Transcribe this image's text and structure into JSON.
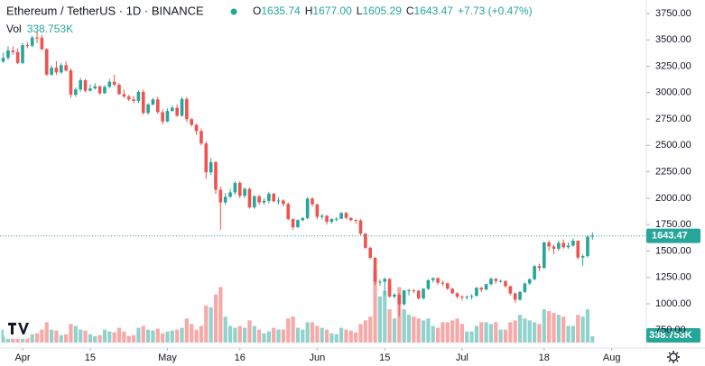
{
  "chart_data": {
    "type": "candlestick",
    "title": "Ethereum / TetherUS · 1D · BINANCE",
    "ohlc_legend": [
      {
        "key": "O",
        "label": "1635.74"
      },
      {
        "key": "H",
        "label": "1677.00"
      },
      {
        "key": "L",
        "label": "1605.29"
      },
      {
        "key": "C",
        "label": "1643.47"
      },
      {
        "label": "+7.73 (+0.47%)"
      }
    ],
    "volume_title": "Vol",
    "volume_label": "338.753K",
    "price_label": "1643.47",
    "up_color": "#26a69a",
    "down_color": "#ef5350",
    "x": [
      "03-28",
      "03-29",
      "03-30",
      "03-31",
      "04-01",
      "04-02",
      "04-03",
      "04-04",
      "04-05",
      "04-06",
      "04-07",
      "04-08",
      "04-09",
      "04-10",
      "04-11",
      "04-12",
      "04-13",
      "04-14",
      "04-15",
      "04-16",
      "04-17",
      "04-18",
      "04-19",
      "04-20",
      "04-21",
      "04-22",
      "04-23",
      "04-24",
      "04-25",
      "04-26",
      "04-27",
      "04-28",
      "04-29",
      "04-30",
      "05-01",
      "05-02",
      "05-03",
      "05-04",
      "05-05",
      "05-06",
      "05-07",
      "05-08",
      "05-09",
      "05-10",
      "05-11",
      "05-12",
      "05-13",
      "05-14",
      "05-15",
      "05-16",
      "05-17",
      "05-18",
      "05-19",
      "05-20",
      "05-21",
      "05-22",
      "05-23",
      "05-24",
      "05-25",
      "05-26",
      "05-27",
      "05-28",
      "05-29",
      "05-30",
      "05-31",
      "06-01",
      "06-02",
      "06-03",
      "06-04",
      "06-05",
      "06-06",
      "06-07",
      "06-08",
      "06-09",
      "06-10",
      "06-11",
      "06-12",
      "06-13",
      "06-14",
      "06-15",
      "06-16",
      "06-17",
      "06-18",
      "06-19",
      "06-20",
      "06-21",
      "06-22",
      "06-23",
      "06-24",
      "06-25",
      "06-26",
      "06-27",
      "06-28",
      "06-29",
      "06-30",
      "07-01",
      "07-02",
      "07-03",
      "07-04",
      "07-05",
      "07-06",
      "07-07",
      "07-08",
      "07-09",
      "07-10",
      "07-11",
      "07-12",
      "07-13",
      "07-14",
      "07-15",
      "07-16",
      "07-17",
      "07-18",
      "07-19",
      "07-20",
      "07-21",
      "07-22",
      "07-23",
      "07-24",
      "07-25",
      "07-26",
      "07-27",
      "07-28"
    ],
    "open": [
      3295,
      3330,
      3400,
      3385,
      3281,
      3450,
      3444,
      3522,
      3521,
      3412,
      3171,
      3236,
      3192,
      3260,
      3210,
      2980,
      3030,
      3118,
      3018,
      3040,
      3060,
      2994,
      3055,
      3103,
      3075,
      2986,
      2963,
      2936,
      2922,
      3008,
      2808,
      2888,
      2936,
      2815,
      2727,
      2826,
      2857,
      2782,
      2940,
      2749,
      2695,
      2636,
      2518,
      2245,
      2342,
      2080,
      1960,
      2013,
      2055,
      2145,
      2023,
      2089,
      1913,
      2018,
      1960,
      1975,
      2043,
      1971,
      1978,
      1945,
      1802,
      1725,
      1792,
      1812,
      1997,
      1942,
      1823,
      1834,
      1776,
      1803,
      1805,
      1860,
      1814,
      1793,
      1790,
      1664,
      1530,
      1436,
      1207,
      1209,
      1236,
      1068,
      1086,
      995,
      1127,
      1127,
      1124,
      1051,
      1142,
      1225,
      1243,
      1199,
      1193,
      1143,
      1099,
      1067,
      1059,
      1067,
      1074,
      1151,
      1134,
      1186,
      1237,
      1215,
      1216,
      1167,
      1097,
      1038,
      1112,
      1192,
      1233,
      1356,
      1339,
      1581,
      1543,
      1521,
      1577,
      1535,
      1551,
      1597,
      1438,
      1451,
      1635.74
    ],
    "high": [
      3380,
      3440,
      3440,
      3420,
      3470,
      3480,
      3540,
      3580,
      3550,
      3420,
      3260,
      3300,
      3280,
      3300,
      3230,
      3050,
      3140,
      3130,
      3080,
      3090,
      3070,
      3070,
      3130,
      3170,
      3090,
      3030,
      2980,
      2970,
      3020,
      3030,
      2900,
      2950,
      2960,
      2840,
      2850,
      2880,
      2890,
      2960,
      2960,
      2760,
      2710,
      2660,
      2540,
      2380,
      2350,
      2110,
      2050,
      2090,
      2160,
      2160,
      2100,
      2100,
      2030,
      2030,
      2000,
      2060,
      2050,
      2010,
      1990,
      1960,
      1810,
      1800,
      1820,
      2010,
      2010,
      1950,
      1850,
      1840,
      1810,
      1820,
      1870,
      1870,
      1820,
      1800,
      1800,
      1670,
      1540,
      1440,
      1230,
      1250,
      1240,
      1100,
      1100,
      1130,
      1140,
      1140,
      1130,
      1150,
      1230,
      1250,
      1250,
      1220,
      1200,
      1150,
      1110,
      1080,
      1080,
      1090,
      1160,
      1160,
      1190,
      1250,
      1240,
      1230,
      1220,
      1170,
      1110,
      1120,
      1200,
      1240,
      1370,
      1380,
      1590,
      1600,
      1560,
      1600,
      1610,
      1580,
      1620,
      1600,
      1470,
      1650,
      1677
    ],
    "low": [
      3280,
      3310,
      3360,
      3270,
      3270,
      3420,
      3430,
      3470,
      3400,
      3160,
      3160,
      3170,
      3180,
      3200,
      2950,
      2960,
      3010,
      3000,
      3010,
      3030,
      2980,
      2990,
      3040,
      3060,
      2980,
      2950,
      2920,
      2900,
      2900,
      2790,
      2790,
      2880,
      2800,
      2700,
      2720,
      2820,
      2770,
      2770,
      2720,
      2680,
      2600,
      2500,
      2180,
      2220,
      2040,
      1700,
      1940,
      2000,
      2030,
      2000,
      2000,
      1900,
      1900,
      1940,
      1940,
      1950,
      1960,
      1940,
      1920,
      1790,
      1700,
      1720,
      1780,
      1800,
      1920,
      1800,
      1800,
      1750,
      1760,
      1780,
      1800,
      1800,
      1780,
      1760,
      1650,
      1520,
      1420,
      1180,
      1170,
      1080,
      1060,
      1050,
      880,
      980,
      1080,
      1100,
      1040,
      1040,
      1130,
      1200,
      1180,
      1170,
      1130,
      1090,
      1050,
      1030,
      1040,
      1040,
      1070,
      1110,
      1130,
      1170,
      1190,
      1200,
      1150,
      1080,
      1010,
      1030,
      1100,
      1180,
      1220,
      1310,
      1330,
      1500,
      1470,
      1500,
      1520,
      1520,
      1540,
      1420,
      1360,
      1440,
      1605.29
    ],
    "close": [
      3330,
      3400,
      3385,
      3281,
      3450,
      3444,
      3522,
      3521,
      3412,
      3171,
      3236,
      3192,
      3260,
      3210,
      2980,
      3030,
      3118,
      3018,
      3040,
      3060,
      2994,
      3055,
      3103,
      3075,
      2986,
      2963,
      2936,
      2922,
      3008,
      2808,
      2888,
      2936,
      2815,
      2727,
      2826,
      2857,
      2782,
      2940,
      2749,
      2695,
      2636,
      2518,
      2245,
      2342,
      2080,
      1960,
      2013,
      2055,
      2145,
      2023,
      2089,
      1913,
      2018,
      1960,
      1975,
      2043,
      1971,
      1978,
      1945,
      1802,
      1725,
      1792,
      1812,
      1997,
      1942,
      1823,
      1834,
      1776,
      1803,
      1805,
      1860,
      1814,
      1793,
      1790,
      1664,
      1530,
      1436,
      1207,
      1209,
      1236,
      1068,
      1086,
      995,
      1127,
      1127,
      1124,
      1051,
      1142,
      1225,
      1243,
      1199,
      1193,
      1143,
      1099,
      1067,
      1059,
      1067,
      1074,
      1151,
      1134,
      1186,
      1237,
      1215,
      1216,
      1167,
      1097,
      1038,
      1112,
      1192,
      1233,
      1356,
      1339,
      1581,
      1543,
      1521,
      1577,
      1535,
      1551,
      1597,
      1438,
      1451,
      1635.74,
      1643.47
    ],
    "volume": [
      700000,
      650000,
      550000,
      600000,
      800000,
      500000,
      450000,
      500000,
      700000,
      1100000,
      700000,
      650000,
      400000,
      450000,
      1000000,
      900000,
      700000,
      650000,
      450000,
      350000,
      400000,
      700000,
      600000,
      550000,
      800000,
      600000,
      350000,
      400000,
      800000,
      900000,
      700000,
      650000,
      750000,
      500000,
      600000,
      650000,
      700000,
      800000,
      1300000,
      1000000,
      700000,
      900000,
      2000000,
      1900000,
      2600000,
      3000000,
      1400000,
      900000,
      800000,
      900000,
      800000,
      1200000,
      900000,
      700000,
      500000,
      600000,
      800000,
      700000,
      700000,
      1300000,
      1400000,
      800000,
      700000,
      1100000,
      1100000,
      900000,
      800000,
      700000,
      500000,
      450000,
      800000,
      700000,
      650000,
      550000,
      1000000,
      1200000,
      1400000,
      3900000,
      2500000,
      2800000,
      1800000,
      1300000,
      3000000,
      1800000,
      1500000,
      1400000,
      1300000,
      1200000,
      1300000,
      900000,
      800000,
      1100000,
      1100000,
      1200000,
      1300000,
      1000000,
      600000,
      600000,
      900000,
      1100000,
      1100000,
      1000000,
      1100000,
      700000,
      700000,
      1100000,
      1200000,
      1500000,
      1300000,
      1200000,
      1100000,
      1000000,
      1800000,
      1700000,
      1600000,
      1500000,
      1400000,
      900000,
      900000,
      1500000,
      1400000,
      1800000,
      338753
    ],
    "ylim": [
      581,
      3878
    ],
    "yticks": [
      {
        "value": 750,
        "label": "750.00"
      },
      {
        "value": 1000,
        "label": "1000.00"
      },
      {
        "value": 1250,
        "label": "1250.00"
      },
      {
        "value": 1500,
        "label": "1500.00"
      },
      {
        "value": 1750,
        "label": "1750.00"
      },
      {
        "value": 2000,
        "label": "2000.00"
      },
      {
        "value": 2250,
        "label": "2250.00"
      },
      {
        "value": 2500,
        "label": "2500.00"
      },
      {
        "value": 2750,
        "label": "2750.00"
      },
      {
        "value": 3000,
        "label": "3000.00"
      },
      {
        "value": 3250,
        "label": "3250.00"
      },
      {
        "value": 3500,
        "label": "3500.00"
      },
      {
        "value": 3750,
        "label": "3750.00"
      }
    ],
    "xticks": [
      {
        "value": "04-01",
        "label": "Apr"
      },
      {
        "value": "04-15",
        "label": "15"
      },
      {
        "value": "05-01",
        "label": "May"
      },
      {
        "value": "05-16",
        "label": "16"
      },
      {
        "value": "06-01",
        "label": "Jun"
      },
      {
        "value": "06-15",
        "label": "15"
      },
      {
        "value": "07-01",
        "label": "Jul"
      },
      {
        "value": "07-18",
        "label": "18"
      },
      {
        "value": "08-01",
        "label": "Aug"
      }
    ]
  }
}
